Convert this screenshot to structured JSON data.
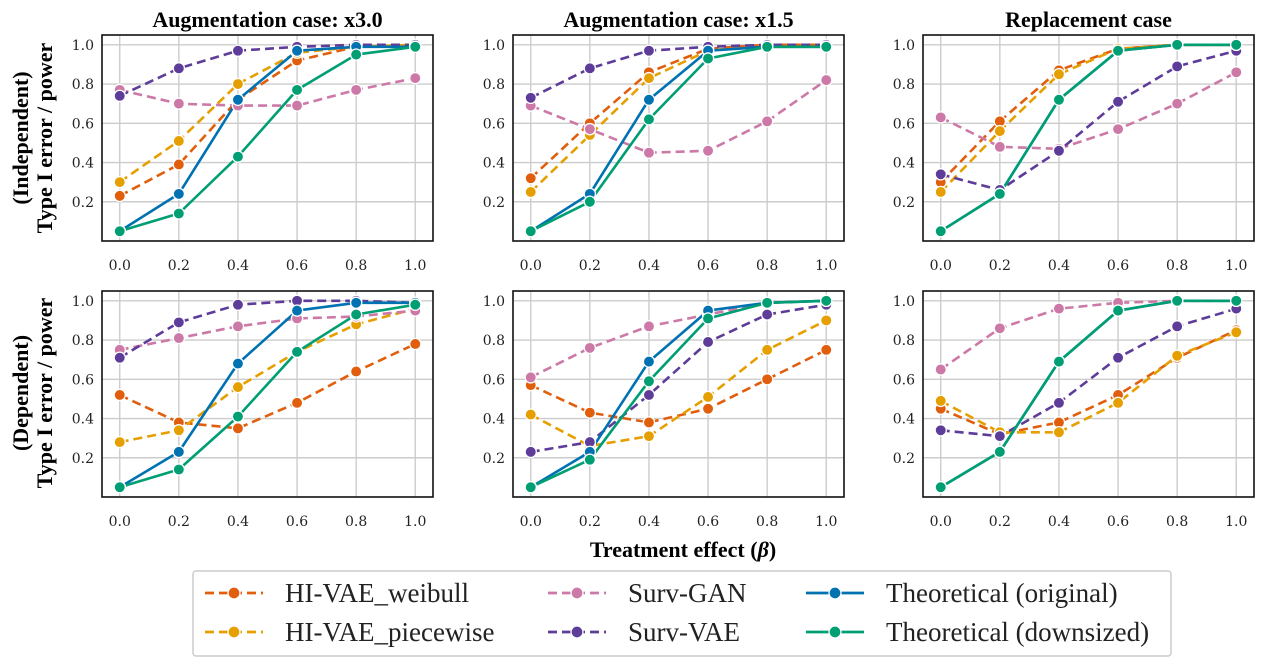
{
  "chart_data": {
    "type": "line",
    "xlabel_prefix": "Treatment effect (",
    "xlabel_symbol": "β",
    "xlabel_suffix": ")",
    "row_labels": [
      [
        "(Independent)",
        "Type I error / power"
      ],
      [
        "(Dependent)",
        "Type I error / power"
      ]
    ],
    "column_titles": [
      "Augmentation case: x3.0",
      "Augmentation case: x1.5",
      "Replacement case"
    ],
    "x": [
      0.0,
      0.2,
      0.4,
      0.6,
      0.8,
      1.0
    ],
    "x_tick_labels": [
      "0.0",
      "0.2",
      "0.4",
      "0.6",
      "0.8",
      "1.0"
    ],
    "xlim": [
      -0.06,
      1.06
    ],
    "ylim": [
      0.0,
      1.05
    ],
    "y_ticks": [
      0.2,
      0.4,
      0.6,
      0.8,
      1.0
    ],
    "y_tick_labels": [
      "0.2",
      "0.4",
      "0.6",
      "0.8",
      "1.0"
    ],
    "grid": true,
    "series_styles": [
      {
        "name": "HI-VAE_weibull",
        "color": "#e15e0d",
        "dash": "dashed"
      },
      {
        "name": "HI-VAE_piecewise",
        "color": "#e69f00",
        "dash": "dashed"
      },
      {
        "name": "Surv-GAN",
        "color": "#cc79a7",
        "dash": "dashed"
      },
      {
        "name": "Surv-VAE",
        "color": "#5e3c99",
        "dash": "dashed"
      },
      {
        "name": "Theoretical (original)",
        "color": "#0072b2",
        "dash": "solid"
      },
      {
        "name": "Theoretical (downsized)",
        "color": "#009e73",
        "dash": "solid"
      }
    ],
    "panels": [
      {
        "row": 0,
        "col": 0,
        "series": [
          {
            "name": "HI-VAE_weibull",
            "values": [
              0.23,
              0.39,
              0.72,
              0.92,
              0.99,
              1.0
            ]
          },
          {
            "name": "HI-VAE_piecewise",
            "values": [
              0.3,
              0.51,
              0.8,
              0.96,
              0.99,
              1.0
            ]
          },
          {
            "name": "Surv-GAN",
            "values": [
              0.77,
              0.7,
              0.69,
              0.69,
              0.77,
              0.83
            ]
          },
          {
            "name": "Surv-VAE",
            "values": [
              0.74,
              0.88,
              0.97,
              0.99,
              1.0,
              1.0
            ]
          },
          {
            "name": "Theoretical (original)",
            "values": [
              0.05,
              0.24,
              0.72,
              0.97,
              0.99,
              0.99
            ]
          },
          {
            "name": "Theoretical (downsized)",
            "values": [
              0.05,
              0.14,
              0.43,
              0.77,
              0.95,
              0.99
            ]
          }
        ]
      },
      {
        "row": 0,
        "col": 1,
        "series": [
          {
            "name": "HI-VAE_weibull",
            "values": [
              0.32,
              0.6,
              0.86,
              0.98,
              1.0,
              1.0
            ]
          },
          {
            "name": "HI-VAE_piecewise",
            "values": [
              0.25,
              0.54,
              0.83,
              0.97,
              1.0,
              1.0
            ]
          },
          {
            "name": "Surv-GAN",
            "values": [
              0.69,
              0.57,
              0.45,
              0.46,
              0.61,
              0.82
            ]
          },
          {
            "name": "Surv-VAE",
            "values": [
              0.73,
              0.88,
              0.97,
              0.99,
              1.0,
              1.0
            ]
          },
          {
            "name": "Theoretical (original)",
            "values": [
              0.05,
              0.24,
              0.72,
              0.97,
              0.99,
              0.99
            ]
          },
          {
            "name": "Theoretical (downsized)",
            "values": [
              0.05,
              0.2,
              0.62,
              0.93,
              0.99,
              0.99
            ]
          }
        ]
      },
      {
        "row": 0,
        "col": 2,
        "series": [
          {
            "name": "HI-VAE_weibull",
            "values": [
              0.3,
              0.61,
              0.87,
              0.98,
              1.0,
              1.0
            ]
          },
          {
            "name": "HI-VAE_piecewise",
            "values": [
              0.25,
              0.56,
              0.85,
              0.98,
              1.0,
              1.0
            ]
          },
          {
            "name": "Surv-GAN",
            "values": [
              0.63,
              0.48,
              0.47,
              0.57,
              0.7,
              0.86
            ]
          },
          {
            "name": "Surv-VAE",
            "values": [
              0.34,
              0.26,
              0.46,
              0.71,
              0.89,
              0.97
            ]
          },
          {
            "name": "Theoretical (original)",
            "values": [
              0.05,
              0.24,
              0.72,
              0.97,
              1.0,
              1.0
            ]
          },
          {
            "name": "Theoretical (downsized)",
            "values": [
              0.05,
              0.24,
              0.72,
              0.97,
              1.0,
              1.0
            ]
          }
        ]
      },
      {
        "row": 1,
        "col": 0,
        "series": [
          {
            "name": "HI-VAE_weibull",
            "values": [
              0.52,
              0.38,
              0.35,
              0.48,
              0.64,
              0.78
            ]
          },
          {
            "name": "HI-VAE_piecewise",
            "values": [
              0.28,
              0.34,
              0.56,
              0.74,
              0.88,
              0.96
            ]
          },
          {
            "name": "Surv-GAN",
            "values": [
              0.75,
              0.81,
              0.87,
              0.91,
              0.92,
              0.95
            ]
          },
          {
            "name": "Surv-VAE",
            "values": [
              0.71,
              0.89,
              0.98,
              1.0,
              1.0,
              0.99
            ]
          },
          {
            "name": "Theoretical (original)",
            "values": [
              0.05,
              0.23,
              0.68,
              0.95,
              0.99,
              0.99
            ]
          },
          {
            "name": "Theoretical (downsized)",
            "values": [
              0.05,
              0.14,
              0.41,
              0.74,
              0.93,
              0.98
            ]
          }
        ]
      },
      {
        "row": 1,
        "col": 1,
        "series": [
          {
            "name": "HI-VAE_weibull",
            "values": [
              0.57,
              0.43,
              0.38,
              0.45,
              0.6,
              0.75
            ]
          },
          {
            "name": "HI-VAE_piecewise",
            "values": [
              0.42,
              0.26,
              0.31,
              0.51,
              0.75,
              0.9
            ]
          },
          {
            "name": "Surv-GAN",
            "values": [
              0.61,
              0.76,
              0.87,
              0.93,
              0.99,
              1.0
            ]
          },
          {
            "name": "Surv-VAE",
            "values": [
              0.23,
              0.28,
              0.52,
              0.79,
              0.93,
              0.98
            ]
          },
          {
            "name": "Theoretical (original)",
            "values": [
              0.05,
              0.23,
              0.69,
              0.95,
              0.99,
              1.0
            ]
          },
          {
            "name": "Theoretical (downsized)",
            "values": [
              0.05,
              0.19,
              0.59,
              0.91,
              0.99,
              1.0
            ]
          }
        ]
      },
      {
        "row": 1,
        "col": 2,
        "series": [
          {
            "name": "HI-VAE_weibull",
            "values": [
              0.45,
              0.32,
              0.38,
              0.52,
              0.71,
              0.85
            ]
          },
          {
            "name": "HI-VAE_piecewise",
            "values": [
              0.49,
              0.33,
              0.33,
              0.48,
              0.72,
              0.84
            ]
          },
          {
            "name": "Surv-GAN",
            "values": [
              0.65,
              0.86,
              0.96,
              0.99,
              1.0,
              1.0
            ]
          },
          {
            "name": "Surv-VAE",
            "values": [
              0.34,
              0.31,
              0.48,
              0.71,
              0.87,
              0.96
            ]
          },
          {
            "name": "Theoretical (original)",
            "values": [
              0.05,
              0.23,
              0.69,
              0.95,
              1.0,
              1.0
            ]
          },
          {
            "name": "Theoretical (downsized)",
            "values": [
              0.05,
              0.23,
              0.69,
              0.95,
              1.0,
              1.0
            ]
          }
        ]
      }
    ],
    "legend": {
      "placement": "bottom-center",
      "columns": 3,
      "entries": [
        "HI-VAE_weibull",
        "HI-VAE_piecewise",
        "Surv-GAN",
        "Surv-VAE",
        "Theoretical (original)",
        "Theoretical (downsized)"
      ]
    }
  }
}
